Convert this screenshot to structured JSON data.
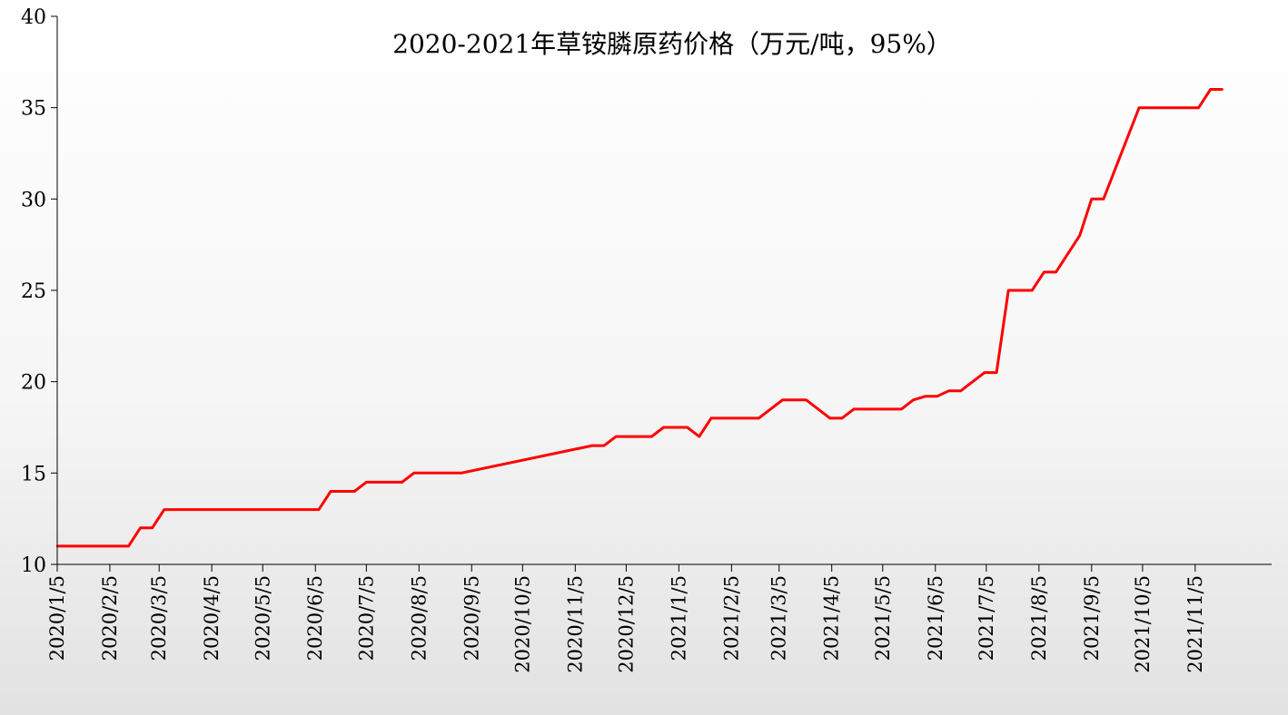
{
  "chart_data": {
    "type": "line",
    "title": "2020-2021年草铵膦原药价格（万元/吨，95%）",
    "xlabel": "",
    "ylabel": "",
    "ylim": [
      10,
      40
    ],
    "yticks": [
      10,
      15,
      20,
      25,
      30,
      35,
      40
    ],
    "grid": false,
    "legend": "none",
    "colors": {
      "line": "#ff0000",
      "axis": "#000000"
    },
    "x_tick_labels": [
      "2020/1/5",
      "2020/2/5",
      "2020/3/5",
      "2020/4/5",
      "2020/5/5",
      "2020/6/5",
      "2020/7/5",
      "2020/8/5",
      "2020/9/5",
      "2020/10/5",
      "2020/11/5",
      "2020/12/5",
      "2021/1/5",
      "2021/2/5",
      "2021/3/5",
      "2021/4/5",
      "2021/5/5",
      "2021/6/5",
      "2021/7/5",
      "2021/8/5",
      "2021/9/5",
      "2021/10/5",
      "2021/11/5"
    ],
    "x_range": [
      "2020-01-05",
      "2021-12-20"
    ],
    "series": [
      {
        "points": [
          [
            "2020-01-05",
            11
          ],
          [
            "2020-02-16",
            11
          ],
          [
            "2020-02-23",
            12
          ],
          [
            "2020-03-01",
            12
          ],
          [
            "2020-03-08",
            13
          ],
          [
            "2020-06-07",
            13
          ],
          [
            "2020-06-14",
            14
          ],
          [
            "2020-06-28",
            14
          ],
          [
            "2020-07-05",
            14.5
          ],
          [
            "2020-07-26",
            14.5
          ],
          [
            "2020-08-02",
            15
          ],
          [
            "2020-08-30",
            15
          ],
          [
            "2020-11-15",
            16.5
          ],
          [
            "2020-11-22",
            16.5
          ],
          [
            "2020-11-29",
            17
          ],
          [
            "2020-12-20",
            17
          ],
          [
            "2020-12-27",
            17.5
          ],
          [
            "2021-01-10",
            17.5
          ],
          [
            "2021-01-17",
            17
          ],
          [
            "2021-01-24",
            18
          ],
          [
            "2021-02-21",
            18
          ],
          [
            "2021-03-07",
            19
          ],
          [
            "2021-03-21",
            19
          ],
          [
            "2021-04-04",
            18
          ],
          [
            "2021-04-11",
            18
          ],
          [
            "2021-04-18",
            18.5
          ],
          [
            "2021-05-16",
            18.5
          ],
          [
            "2021-05-23",
            19
          ],
          [
            "2021-05-30",
            19.2
          ],
          [
            "2021-06-06",
            19.2
          ],
          [
            "2021-06-13",
            19.5
          ],
          [
            "2021-06-20",
            19.5
          ],
          [
            "2021-07-04",
            20.5
          ],
          [
            "2021-07-11",
            20.5
          ],
          [
            "2021-07-18",
            25
          ],
          [
            "2021-08-01",
            25
          ],
          [
            "2021-08-08",
            26
          ],
          [
            "2021-08-15",
            26
          ],
          [
            "2021-08-29",
            28
          ],
          [
            "2021-09-05",
            30
          ],
          [
            "2021-09-12",
            30
          ],
          [
            "2021-10-03",
            35
          ],
          [
            "2021-11-07",
            35
          ],
          [
            "2021-11-14",
            36
          ],
          [
            "2021-11-21",
            36
          ]
        ]
      }
    ]
  }
}
